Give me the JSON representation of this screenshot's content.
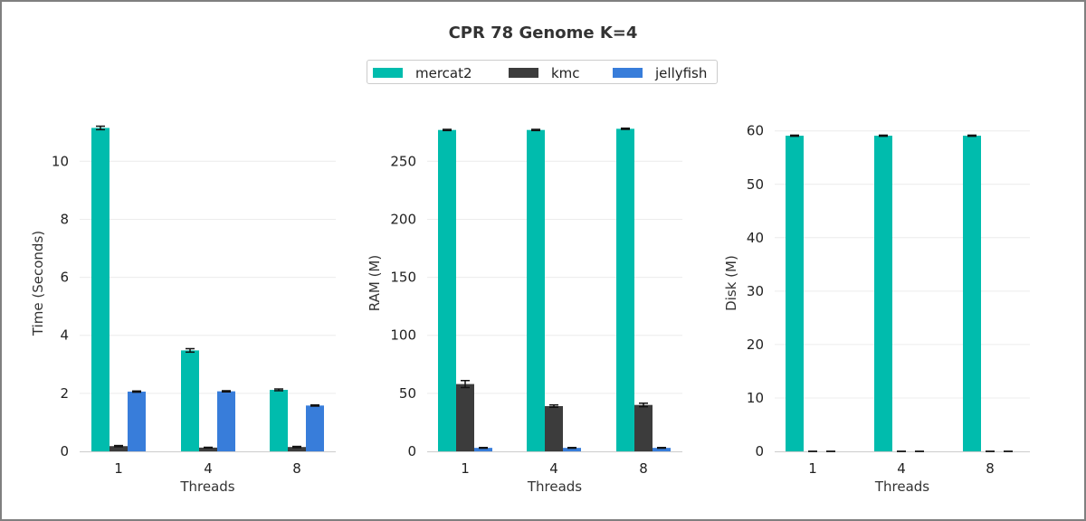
{
  "title": "CPR 78 Genome K=4",
  "legend": [
    {
      "name": "mercat2",
      "color": "#00BCAD"
    },
    {
      "name": "kmc",
      "color": "#3C3C3C"
    },
    {
      "name": "jellyfish",
      "color": "#387DDA"
    }
  ],
  "chart_data": [
    {
      "type": "bar",
      "xlabel": "Threads",
      "ylabel": "Time (Seconds)",
      "categories": [
        "1",
        "4",
        "8"
      ],
      "ylim": [
        0,
        11.6
      ],
      "yticks": [
        0,
        2,
        4,
        6,
        8,
        10
      ],
      "grid": true,
      "series": [
        {
          "name": "mercat2",
          "values": [
            11.15,
            3.48,
            2.12
          ],
          "errors": [
            0.06,
            0.06,
            0.03
          ]
        },
        {
          "name": "kmc",
          "values": [
            0.18,
            0.13,
            0.15
          ],
          "errors": [
            0.02,
            0.01,
            0.02
          ]
        },
        {
          "name": "jellyfish",
          "values": [
            2.06,
            2.07,
            1.58
          ],
          "errors": [
            0.02,
            0.02,
            0.02
          ]
        }
      ]
    },
    {
      "type": "bar",
      "xlabel": "Threads",
      "ylabel": "RAM (M)",
      "categories": [
        "1",
        "4",
        "8"
      ],
      "ylim": [
        0,
        290
      ],
      "yticks": [
        0,
        50,
        100,
        150,
        200,
        250
      ],
      "grid": true,
      "series": [
        {
          "name": "mercat2",
          "values": [
            277,
            277,
            278
          ],
          "errors": [
            0.5,
            0.5,
            0.5
          ]
        },
        {
          "name": "kmc",
          "values": [
            58,
            39,
            40
          ],
          "errors": [
            3,
            1,
            1.5
          ]
        },
        {
          "name": "jellyfish",
          "values": [
            3,
            3,
            3
          ],
          "errors": [
            0.3,
            0.3,
            0.3
          ]
        }
      ]
    },
    {
      "type": "bar",
      "xlabel": "Threads",
      "ylabel": "Disk (M)",
      "categories": [
        "1",
        "4",
        "8"
      ],
      "ylim": [
        0,
        63
      ],
      "yticks": [
        0,
        10,
        20,
        30,
        40,
        50,
        60
      ],
      "grid": true,
      "series": [
        {
          "name": "mercat2",
          "values": [
            59.1,
            59.1,
            59.1
          ],
          "errors": [
            0.1,
            0.1,
            0.1
          ]
        },
        {
          "name": "kmc",
          "values": [
            0,
            0,
            0
          ],
          "errors": [
            0,
            0,
            0
          ]
        },
        {
          "name": "jellyfish",
          "values": [
            0,
            0,
            0
          ],
          "errors": [
            0,
            0,
            0
          ]
        }
      ]
    }
  ]
}
